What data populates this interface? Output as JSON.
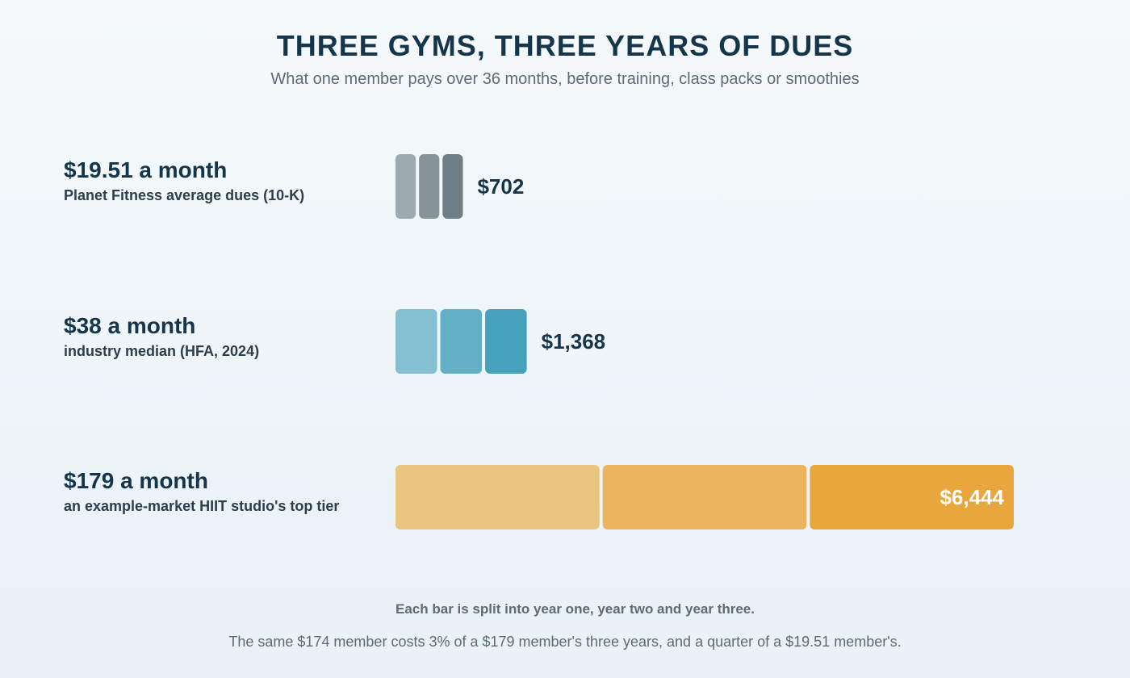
{
  "title": "THREE GYMS, THREE YEARS OF DUES",
  "subtitle": "What one member pays over 36 months, before training, class packs or smoothies",
  "note": "Each bar is split into year one, year two and year three.",
  "footnote": "The same $174 member costs 3% of a $179 member's three years, and a quarter of a $19.51 member's.",
  "chart_data": {
    "type": "bar",
    "orientation": "horizontal",
    "stacked": true,
    "grid": false,
    "categories": [
      "Planet Fitness average dues (10-K)",
      "industry median (HFA, 2024)",
      "an example-market HIIT studio's top tier"
    ],
    "rows": [
      {
        "price_label": "$19.51 a month",
        "source_label": "Planet Fitness average dues (10-K)",
        "segments": [
          234.12,
          234.12,
          234.12
        ],
        "total": 702,
        "total_label": "$702",
        "total_label_inside": false,
        "colors": [
          "#9eaab2",
          "#86939b",
          "#6e7d86"
        ]
      },
      {
        "price_label": "$38 a month",
        "source_label": "industry median (HFA, 2024)",
        "segments": [
          456,
          456,
          456
        ],
        "total": 1368,
        "total_label": "$1,368",
        "total_label_inside": false,
        "colors": [
          "#84c0d1",
          "#63afc5",
          "#45a2ba"
        ]
      },
      {
        "price_label": "$179 a month",
        "source_label": "an example-market HIIT studio's top tier",
        "segments": [
          2148,
          2148,
          2148
        ],
        "total": 6444,
        "total_label": "$6,444",
        "total_label_inside": true,
        "colors": [
          "#eac57f",
          "#eab55e",
          "#e8a63c"
        ]
      }
    ],
    "xlim": [
      0,
      6444
    ]
  },
  "colors": {
    "text_primary": "#15354a",
    "text_muted": "#5d6b75",
    "label_inside": "#ffffff"
  }
}
